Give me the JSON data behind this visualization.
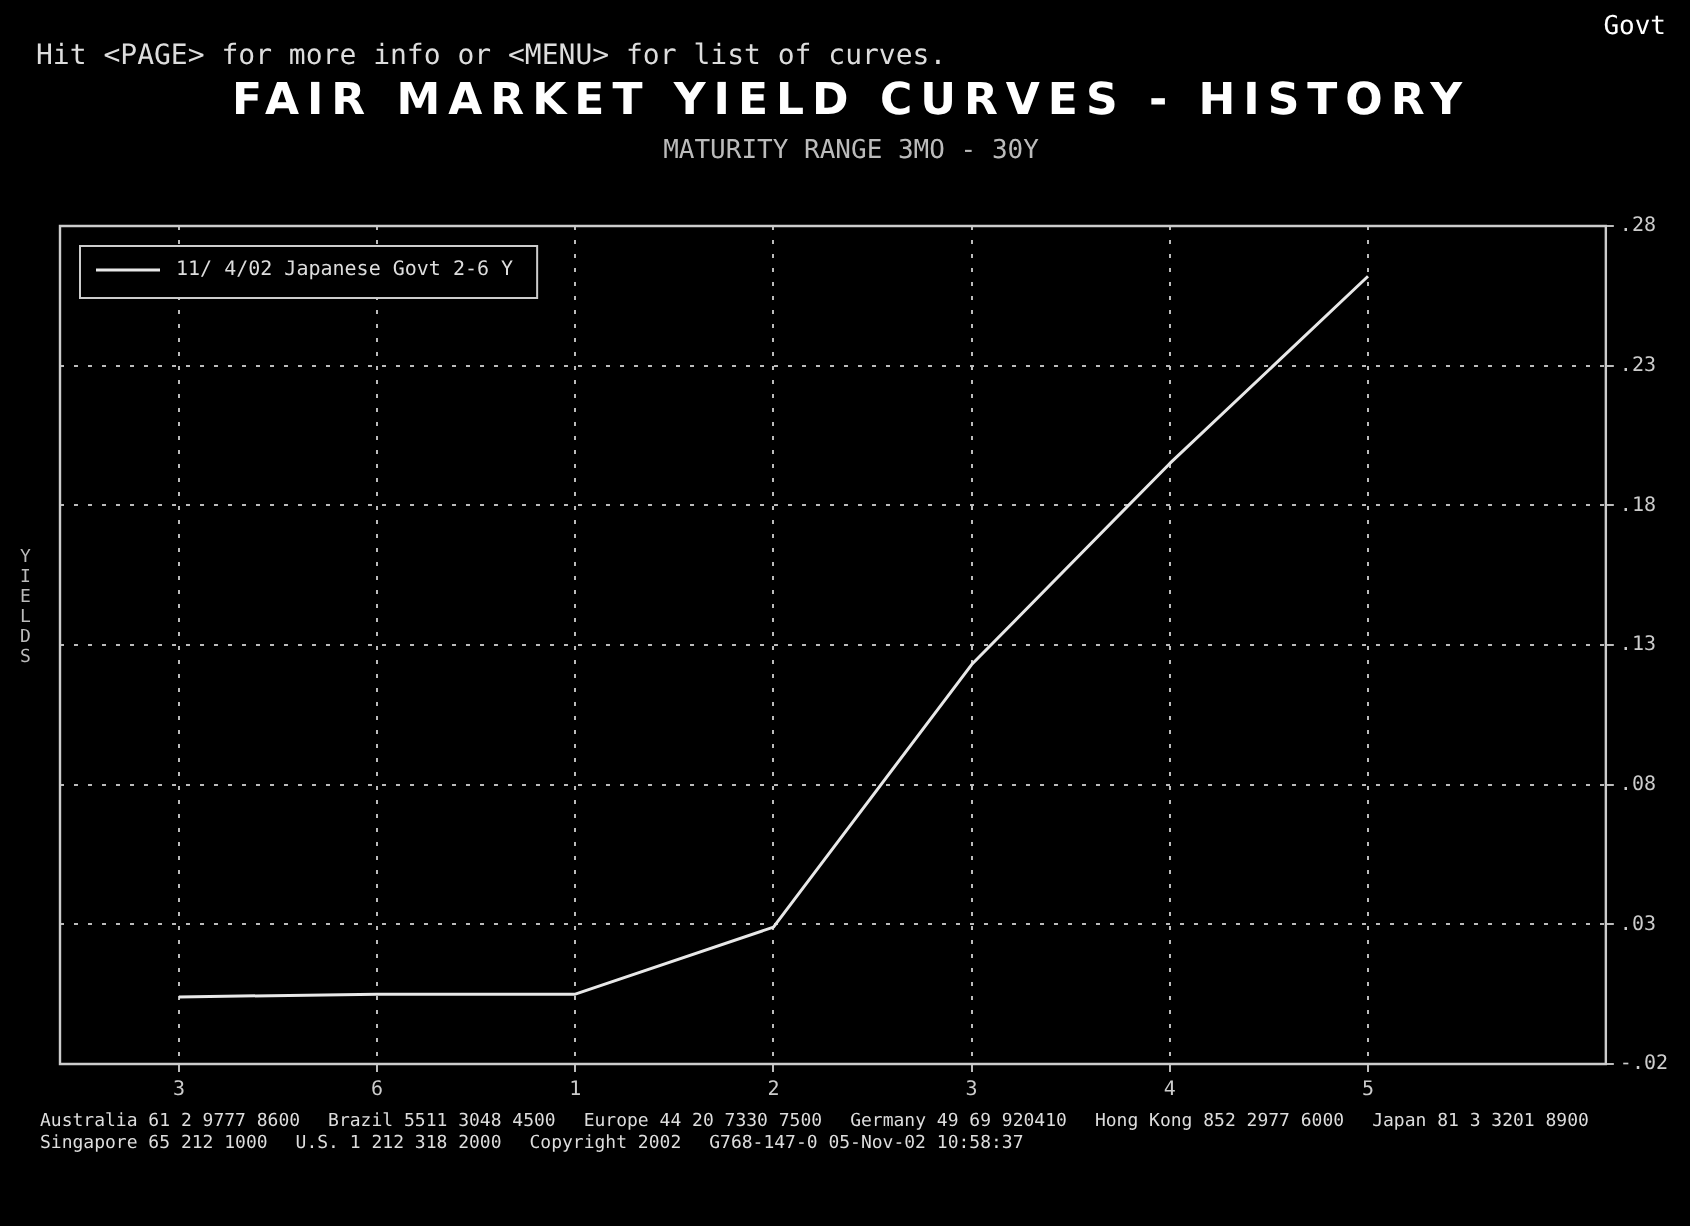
{
  "chart_data": {
    "type": "line",
    "title": "FAIR MARKET YIELD CURVES - HISTORY",
    "subtitle": "MATURITY RANGE 3MO - 30Y",
    "ylabel": "YIELDS",
    "annotations": [
      "Hit <PAGE> for more info or <MENU> for list of curves.",
      "Govt",
      "Australia 61 2 9777 8600",
      "Brazil 5511 3048 4500",
      "Europe 44 20 7330 7500",
      "Germany 49 69 920410",
      "Hong Kong 852 2977 6000",
      "Japan 81 3 3201 8900",
      "Singapore 65 212 1000",
      "U.S. 1 212 318 2000",
      "Copyright 2002",
      "G768-147-0 05-Nov-02 10:58:37"
    ],
    "categories": [
      "3",
      "6",
      "1",
      "2",
      "3",
      "4",
      "5"
    ],
    "series": [
      {
        "name": "11/ 4/02 Japanese Govt 2-6 Y",
        "color": "#e8e8e8",
        "values": [
          0.004,
          0.005,
          0.005,
          0.029,
          0.123,
          0.195,
          0.262
        ]
      }
    ],
    "ylim": [
      -0.02,
      0.28
    ],
    "yticks": [
      {
        "value": -0.02,
        "label": "-.02"
      },
      {
        "value": 0.03,
        "label": ".03"
      },
      {
        "value": 0.08,
        "label": ".08"
      },
      {
        "value": 0.13,
        "label": ".13"
      },
      {
        "value": 0.18,
        "label": ".18"
      },
      {
        "value": 0.23,
        "label": ".23"
      },
      {
        "value": 0.28,
        "label": ".28"
      }
    ],
    "grid": true,
    "legend": "top left",
    "marker": "none",
    "line_style": "solid"
  }
}
